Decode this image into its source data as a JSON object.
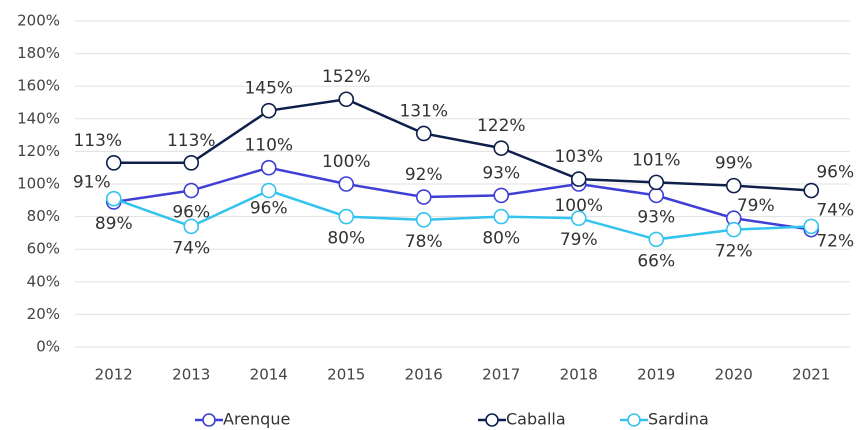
{
  "chart_data": {
    "type": "line",
    "categories": [
      "2012",
      "2013",
      "2014",
      "2015",
      "2016",
      "2017",
      "2018",
      "2019",
      "2020",
      "2021"
    ],
    "ylim": [
      0,
      200
    ],
    "yticks": [
      {
        "value": 0,
        "label": "0%"
      },
      {
        "value": 20,
        "label": "20%"
      },
      {
        "value": 40,
        "label": "40%"
      },
      {
        "value": 60,
        "label": "60%"
      },
      {
        "value": 80,
        "label": "80%"
      },
      {
        "value": 100,
        "label": "100%"
      },
      {
        "value": 120,
        "label": "120%"
      },
      {
        "value": 140,
        "label": "140%"
      },
      {
        "value": 160,
        "label": "160%"
      },
      {
        "value": 180,
        "label": "180%"
      },
      {
        "value": 200,
        "label": "200%"
      }
    ],
    "grid": true,
    "legend": "bottom",
    "series": [
      {
        "name": "Arenque",
        "color": "#3f3fd6",
        "values": [
          89,
          96,
          110,
          100,
          92,
          93,
          100,
          93,
          79,
          72
        ],
        "value_labels": [
          "89%",
          "96%",
          "110%",
          "100%",
          "92%",
          "93%",
          "100%",
          "93%",
          "79%",
          "72%"
        ]
      },
      {
        "name": "Caballa",
        "color": "#0d1f4a",
        "values": [
          113,
          113,
          145,
          152,
          131,
          122,
          103,
          101,
          99,
          96
        ],
        "value_labels": [
          "113%",
          "113%",
          "145%",
          "152%",
          "131%",
          "122%",
          "103%",
          "101%",
          "99%",
          "96%"
        ]
      },
      {
        "name": "Sardina",
        "color": "#33c3ee",
        "values": [
          91,
          74,
          96,
          80,
          78,
          80,
          79,
          66,
          72,
          74
        ],
        "value_labels": [
          "91%",
          "74%",
          "96%",
          "80%",
          "78%",
          "80%",
          "79%",
          "66%",
          "72%",
          "74%"
        ]
      }
    ]
  }
}
